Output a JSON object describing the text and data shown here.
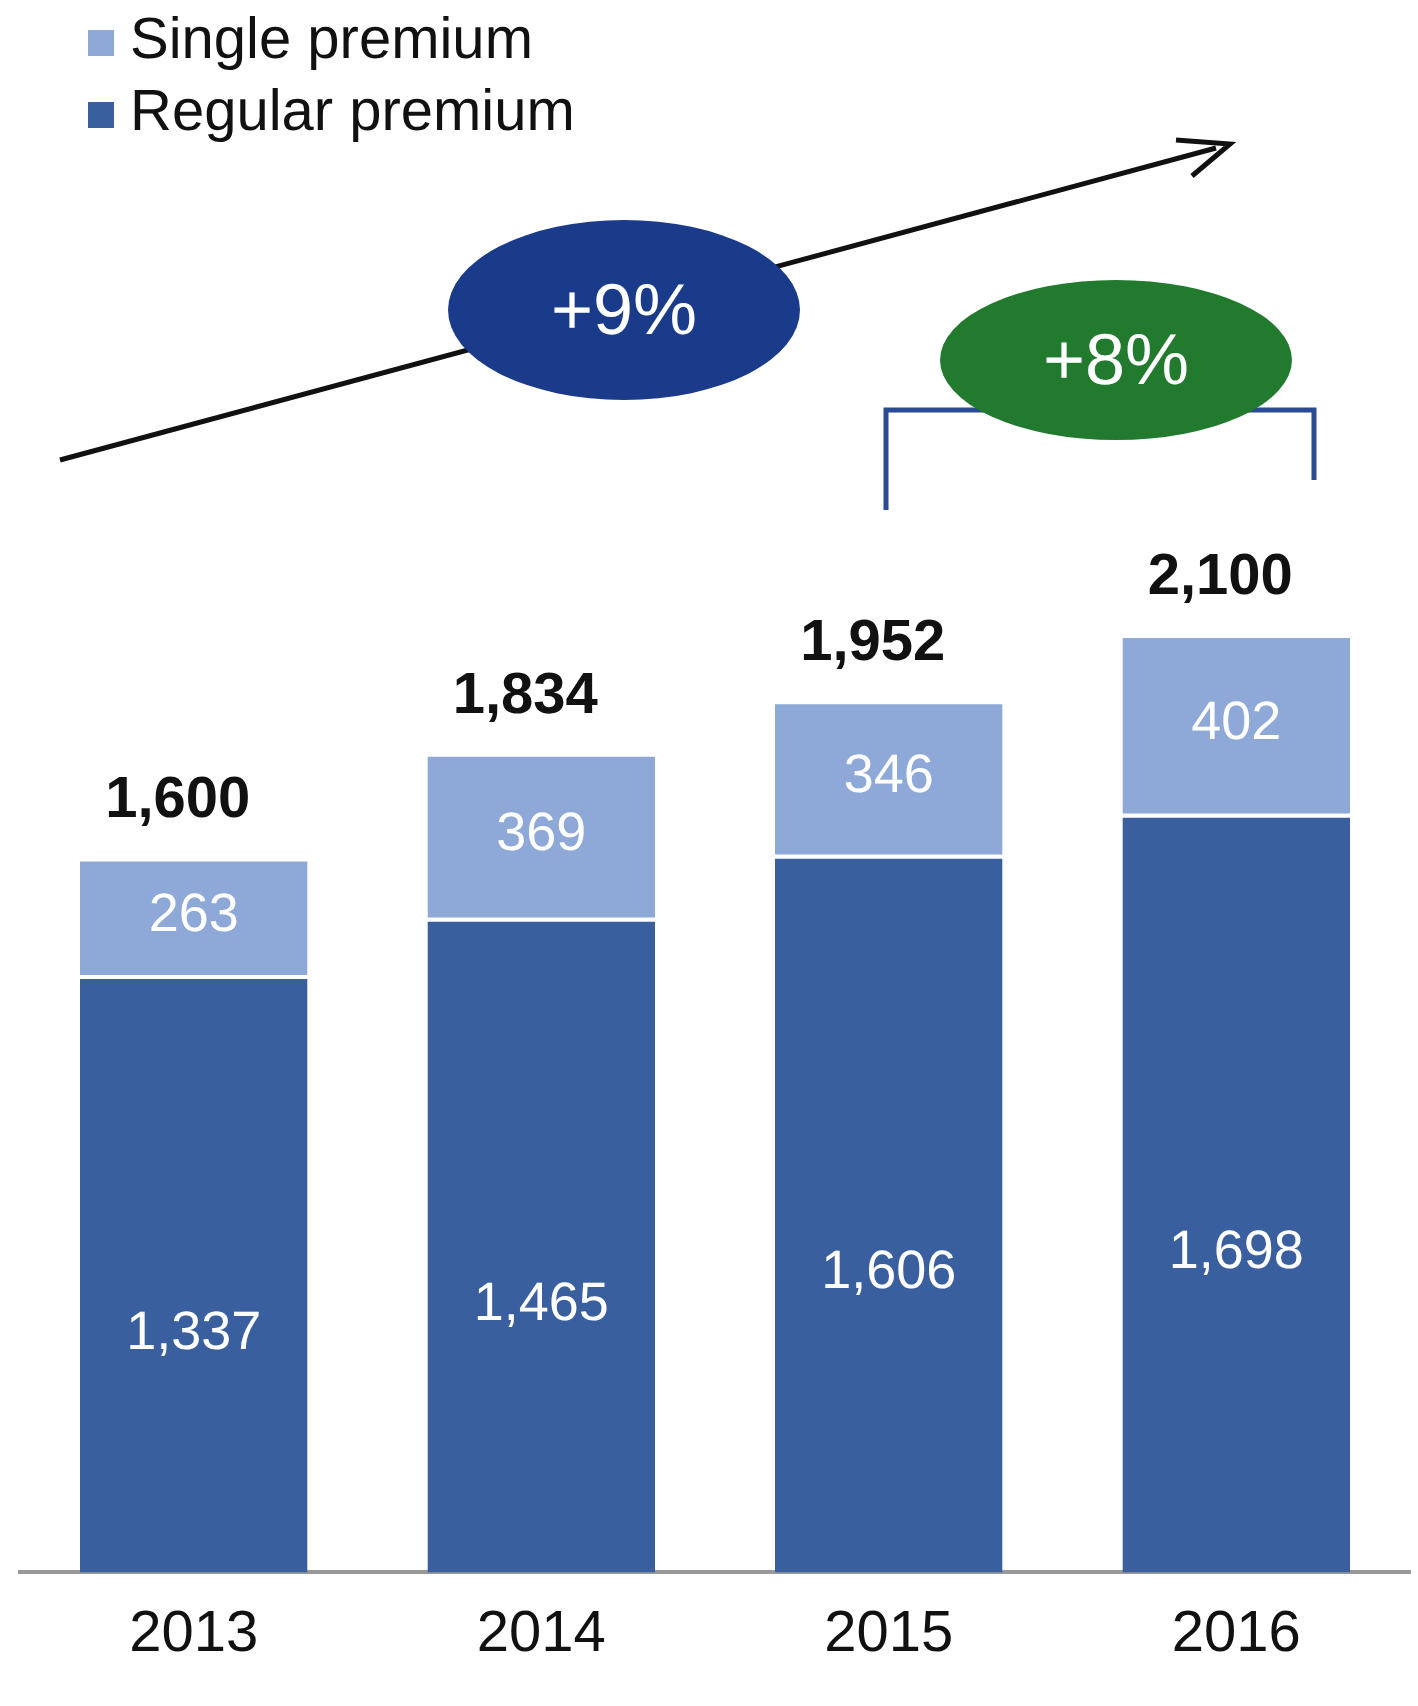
{
  "chart_data": {
    "type": "bar",
    "stacked": true,
    "categories": [
      "2013",
      "2014",
      "2015",
      "2016"
    ],
    "series": [
      {
        "name": "Regular premium",
        "color": "#3a5f9e",
        "values": [
          1337,
          1465,
          1606,
          1698
        ],
        "value_labels": [
          "1,337",
          "1,465",
          "1,606",
          "1,698"
        ]
      },
      {
        "name": "Single premium",
        "color": "#8ea9d8",
        "values": [
          263,
          369,
          346,
          402
        ],
        "value_labels": [
          "263",
          "369",
          "346",
          "402"
        ]
      }
    ],
    "totals": [
      "1,600",
      "1,834",
      "1,952",
      "2,100"
    ],
    "legend": "top left",
    "grid": false,
    "annotations": [
      "+9%",
      "+8%"
    ]
  }
}
